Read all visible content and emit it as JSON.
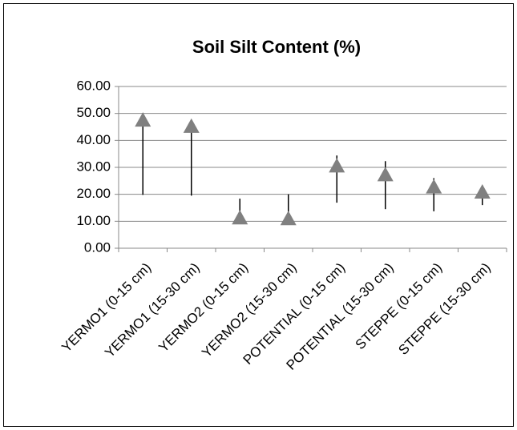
{
  "chart_data": {
    "type": "line",
    "title": "Soil Silt Content (%)",
    "categories": [
      "YERMO1 (0-15 cm)",
      "YERMO1 (15-30 cm)",
      "YERMO2 (0-15 cm)",
      "YERMO2 (15-30 cm)",
      "POTENTIAL (0-15 cm)",
      "POTENTIAL (15-30 cm)",
      "STEPPE (0-15 cm)",
      "STEPPE (15-30 cm)"
    ],
    "values": [
      47.5,
      45.2,
      11.2,
      10.9,
      30.5,
      27.2,
      22.7,
      20.8
    ],
    "high": [
      50.0,
      46.5,
      18.4,
      20.0,
      34.4,
      32.3,
      26.0,
      23.0
    ],
    "low": [
      19.8,
      19.5,
      10.5,
      10.5,
      16.9,
      14.5,
      13.7,
      16.0
    ],
    "color": "#808080",
    "ylim": [
      0,
      60
    ],
    "yticks": [
      {
        "value": 0,
        "label": "0.00"
      },
      {
        "value": 10,
        "label": "10.00"
      },
      {
        "value": 20,
        "label": "20.00"
      },
      {
        "value": 30,
        "label": "30.00"
      },
      {
        "value": 40,
        "label": "40.00"
      },
      {
        "value": 50,
        "label": "50.00"
      },
      {
        "value": 60,
        "label": "60.00"
      }
    ],
    "grid": true
  }
}
